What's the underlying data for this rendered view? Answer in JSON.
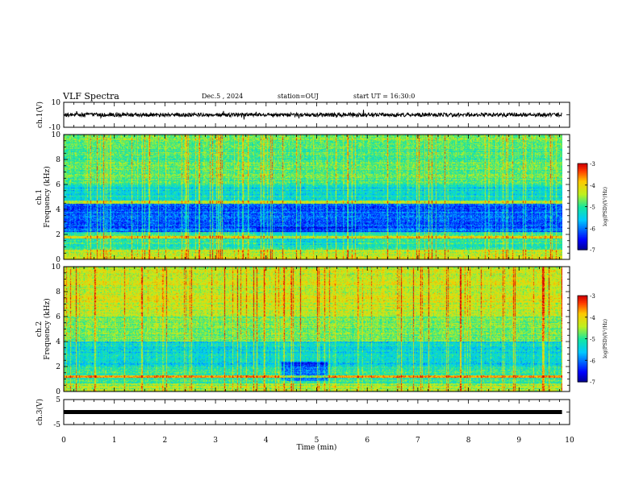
{
  "header": {
    "title": "VLF Spectra",
    "date": "Dec.5 , 2024",
    "station": "station=OUJ",
    "start": "start UT = 16:30:0"
  },
  "chart_data": [
    {
      "type": "line",
      "ylabel": "ch.1(V)",
      "ylim": [
        -10,
        10
      ],
      "yticks": [
        "10",
        "-10"
      ],
      "description_series": "waveform",
      "baseline": 0,
      "amplitude": 1.5
    },
    {
      "type": "heatmap",
      "ylabel": "ch.1 Frequency (kHz)",
      "ylim": [
        0,
        10
      ],
      "yticks": [
        "0",
        "2",
        "4",
        "6",
        "8",
        "10"
      ],
      "colorbar": {
        "label": "log(PSD)(V²/Hz)",
        "range": [
          -7,
          -3
        ],
        "ticks": [
          "-3",
          "-4",
          "-5",
          "-6",
          "-7"
        ]
      }
    },
    {
      "type": "heatmap",
      "ylabel": "ch.2 Frequency (kHz)",
      "ylim": [
        0,
        10
      ],
      "yticks": [
        "0",
        "2",
        "4",
        "6",
        "8",
        "10"
      ],
      "colorbar": {
        "label": "log(PSD)(V²/Hz)",
        "range": [
          -7,
          -3
        ],
        "ticks": [
          "-3",
          "-4",
          "-5",
          "-6",
          "-7"
        ]
      }
    },
    {
      "type": "line",
      "ylabel": "ch.3(V)",
      "ylim": [
        -5,
        5
      ],
      "yticks": [
        "5",
        "-5"
      ],
      "constant_value": 0
    }
  ],
  "xaxis": {
    "label": "Time (min)",
    "xlim": [
      0,
      10
    ],
    "ticks": [
      "0",
      "1",
      "2",
      "3",
      "4",
      "5",
      "6",
      "7",
      "8",
      "9",
      "10"
    ],
    "data_end": 9.85
  }
}
